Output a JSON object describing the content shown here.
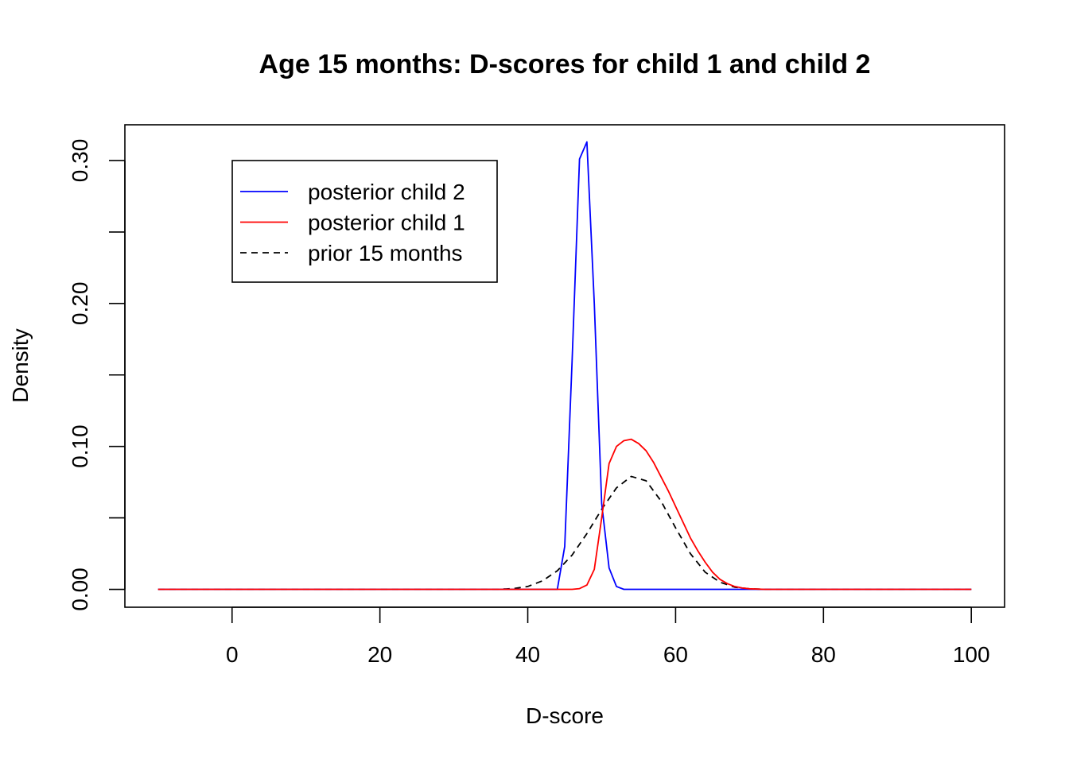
{
  "chart_data": {
    "type": "line",
    "title": "Age 15 months: D-scores for child 1 and child 2",
    "xlabel": "D-score",
    "ylabel": "Density",
    "xlim": [
      -14.5,
      104.5
    ],
    "ylim": [
      -0.0125,
      0.325
    ],
    "x_ticks": [
      0,
      20,
      40,
      60,
      80,
      100
    ],
    "x_tick_labels": [
      "0",
      "20",
      "40",
      "60",
      "80",
      "100"
    ],
    "y_ticks": [
      0.0,
      0.05,
      0.1,
      0.15,
      0.2,
      0.25,
      0.3
    ],
    "y_tick_labels": [
      "0.00",
      "",
      "0.10",
      "",
      "0.20",
      "",
      "0.30"
    ],
    "legend": {
      "position": "top-left",
      "entries": [
        {
          "label": "posterior child 2",
          "color": "#0000FF",
          "dash": "solid"
        },
        {
          "label": "posterior child 1",
          "color": "#FF0000",
          "dash": "solid"
        },
        {
          "label": "prior 15 months",
          "color": "#000000",
          "dash": "dashed"
        }
      ]
    },
    "series": [
      {
        "name": "prior 15 months",
        "color": "#000000",
        "dash": "dashed",
        "x": [
          -10,
          36,
          38,
          40,
          42,
          44,
          46,
          48,
          50,
          52,
          54,
          56,
          58,
          60,
          62,
          64,
          66,
          68,
          70,
          72,
          100
        ],
        "y": [
          0,
          0,
          0.0005,
          0.002,
          0.006,
          0.013,
          0.024,
          0.039,
          0.056,
          0.071,
          0.079,
          0.076,
          0.062,
          0.043,
          0.025,
          0.012,
          0.005,
          0.0015,
          0.0004,
          0,
          0
        ]
      },
      {
        "name": "posterior child 2",
        "color": "#0000FF",
        "dash": "solid",
        "x": [
          -10,
          44,
          45,
          46,
          47,
          48,
          49,
          50,
          51,
          52,
          53,
          100
        ],
        "y": [
          0,
          0,
          0.03,
          0.16,
          0.301,
          0.313,
          0.2,
          0.06,
          0.015,
          0.002,
          0,
          0
        ]
      },
      {
        "name": "posterior child 1",
        "color": "#FF0000",
        "dash": "solid",
        "x": [
          -10,
          46,
          47,
          48,
          49,
          50,
          51,
          52,
          53,
          54,
          55,
          56,
          57,
          58,
          59,
          60,
          61,
          62,
          63,
          64,
          65,
          66,
          67,
          68,
          69,
          70,
          72,
          100
        ],
        "y": [
          0,
          0,
          0.0005,
          0.003,
          0.014,
          0.05,
          0.088,
          0.1,
          0.104,
          0.105,
          0.102,
          0.097,
          0.089,
          0.079,
          0.069,
          0.058,
          0.047,
          0.036,
          0.027,
          0.019,
          0.012,
          0.007,
          0.004,
          0.002,
          0.001,
          0.0004,
          0,
          0
        ]
      }
    ]
  }
}
